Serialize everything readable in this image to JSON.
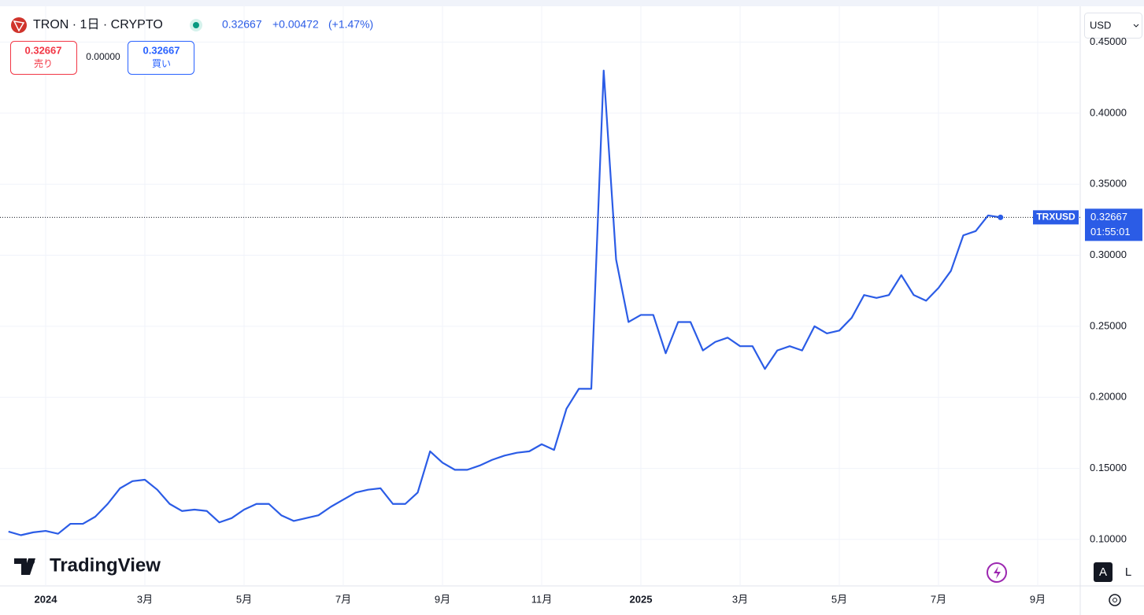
{
  "chart_data": {
    "type": "line",
    "categories": [
      null,
      null,
      null,
      "2024",
      null,
      null,
      null,
      null,
      null,
      null,
      null,
      "3月",
      null,
      null,
      null,
      null,
      null,
      null,
      null,
      "5月",
      null,
      null,
      null,
      null,
      null,
      null,
      null,
      "7月",
      null,
      null,
      null,
      null,
      null,
      null,
      null,
      "9月",
      null,
      null,
      null,
      null,
      null,
      null,
      null,
      "11月",
      null,
      null,
      null,
      null,
      null,
      null,
      null,
      "2025",
      null,
      null,
      null,
      null,
      null,
      null,
      null,
      "3月",
      null,
      null,
      null,
      null,
      null,
      null,
      null,
      "5月",
      null,
      null,
      null,
      null,
      null,
      null,
      null,
      "7月",
      null,
      null,
      null,
      null,
      null,
      null,
      null,
      "9月",
      null,
      null,
      null
    ],
    "series": [
      {
        "name": "TRXUSD",
        "color": "#2b5ce6",
        "values": [
          0.1055,
          0.103,
          0.105,
          0.106,
          0.104,
          0.111,
          0.111,
          0.116,
          0.125,
          0.136,
          0.141,
          0.142,
          0.135,
          0.125,
          0.12,
          0.121,
          0.12,
          0.112,
          0.115,
          0.121,
          0.125,
          0.125,
          0.117,
          0.113,
          0.115,
          0.117,
          0.123,
          0.128,
          0.133,
          0.135,
          0.136,
          0.125,
          0.125,
          0.133,
          0.162,
          0.154,
          0.149,
          0.149,
          0.152,
          0.156,
          0.159,
          0.161,
          0.162,
          0.167,
          0.163,
          0.192,
          0.206,
          0.206,
          0.43,
          0.297,
          0.253,
          0.258,
          0.258,
          0.231,
          0.253,
          0.253,
          0.233,
          0.239,
          0.242,
          0.236,
          0.236,
          0.22,
          0.233,
          0.236,
          0.233,
          0.25,
          0.245,
          0.247,
          0.256,
          0.272,
          0.27,
          0.272,
          0.286,
          0.272,
          0.268,
          0.277,
          0.289,
          0.314,
          0.317,
          0.328,
          0.32667,
          null,
          null,
          null,
          null,
          null,
          null
        ]
      }
    ],
    "ylim": [
      0.0673,
      0.4752
    ],
    "yticks": [
      {
        "value": 0.1,
        "label": "0.10000"
      },
      {
        "value": 0.15,
        "label": "0.15000"
      },
      {
        "value": 0.2,
        "label": "0.20000"
      },
      {
        "value": 0.25,
        "label": "0.25000"
      },
      {
        "value": 0.3,
        "label": "0.30000"
      },
      {
        "value": 0.35,
        "label": "0.35000"
      },
      {
        "value": 0.4,
        "label": "0.40000"
      },
      {
        "value": 0.45,
        "label": "0.45000"
      }
    ],
    "grid": true,
    "countdown": "01:55:01"
  },
  "header": {
    "symbol": "TRON · 1日 · CRYPTO",
    "change": "+0.00472",
    "change_pct": "(+1.47%)",
    "sell_price": "0.32667",
    "sell_label": "売り",
    "spread": "0.00000",
    "buy_price": "0.32667",
    "buy_label": "買い",
    "currency": "USD",
    "logo": "TradingView",
    "auto_button": "A",
    "log_button": "L"
  }
}
